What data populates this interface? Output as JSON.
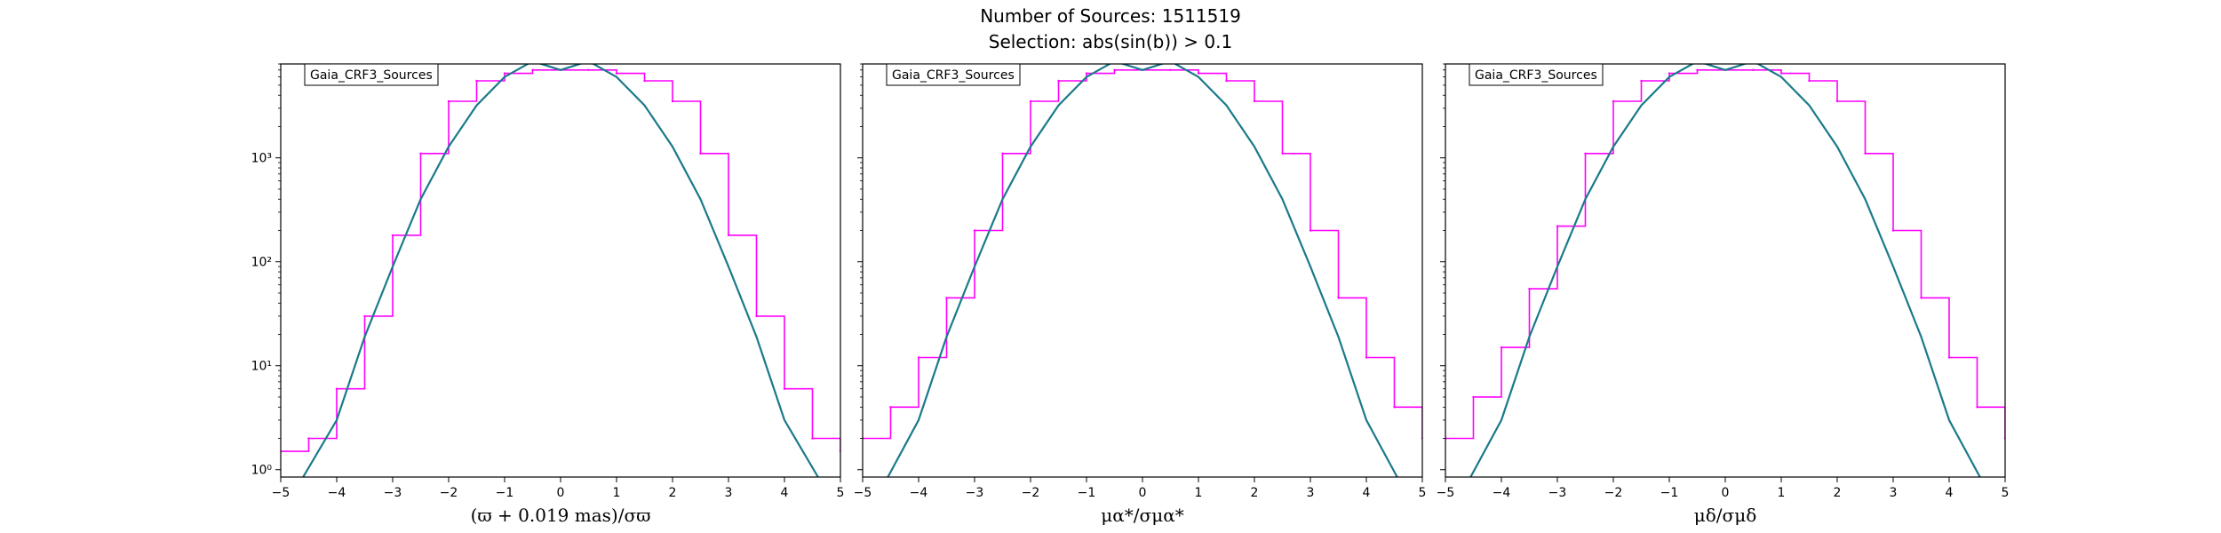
{
  "figure": {
    "title_line1": "Number of Sources: 1511519",
    "title_line2": "Selection: abs(sin(b)) > 0.1",
    "colors": {
      "histogram": "#ff00ff",
      "model_curve": "#1a7a8a",
      "axes": "#000000"
    }
  },
  "chart_data": [
    {
      "type": "line",
      "legend_label": "Gaia_CRF3_Sources",
      "legend_position": "top-left",
      "xlabel": "(ϖ + 0.019 mas)/σϖ",
      "xlim": [
        -5,
        5
      ],
      "ylim": [
        0.85,
        8000
      ],
      "yscale": "log",
      "xticks": [
        "−5",
        "−4",
        "−3",
        "−2",
        "−1",
        "0",
        "1",
        "2",
        "3",
        "4",
        "5"
      ],
      "yticks": [
        {
          "v": 1,
          "label": "10⁰"
        },
        {
          "v": 10,
          "label": "10¹"
        },
        {
          "v": 100,
          "label": "10²"
        },
        {
          "v": 1000,
          "label": "10³"
        }
      ],
      "series": [
        {
          "kind": "histogram",
          "color": "#ff00ff",
          "x": [
            -5.0,
            -4.5,
            -4.0,
            -3.5,
            -3.0,
            -2.5,
            -2.0,
            -1.5,
            -1.0,
            -0.5,
            0.0,
            0.5,
            1.0,
            1.5,
            2.0,
            2.5,
            3.0,
            3.5,
            4.0,
            4.5,
            5.0
          ],
          "y": [
            1.5,
            2,
            6,
            30,
            180,
            1100,
            3500,
            5500,
            6500,
            7000,
            7000,
            7000,
            6500,
            5500,
            3500,
            1100,
            180,
            30,
            6,
            2,
            1.5
          ]
        },
        {
          "kind": "model",
          "color": "#1a7a8a",
          "x": [
            -4.6,
            -4.0,
            -3.5,
            -3.0,
            -2.5,
            -2.0,
            -1.5,
            -1.0,
            -0.5,
            0.0,
            0.5,
            1.0,
            1.5,
            2.0,
            2.5,
            3.0,
            3.5,
            4.0,
            4.6
          ],
          "y": [
            0.85,
            3,
            19,
            90,
            400,
            1280,
            3200,
            6000,
            8500,
            7000,
            8500,
            6000,
            3200,
            1280,
            400,
            90,
            19,
            3,
            0.85
          ]
        }
      ]
    },
    {
      "type": "line",
      "legend_label": "Gaia_CRF3_Sources",
      "legend_position": "top-left",
      "xlabel": "μα*/σμα*",
      "xlim": [
        -5,
        5
      ],
      "ylim": [
        0.85,
        8000
      ],
      "yscale": "log",
      "xticks": [
        "−5",
        "−4",
        "−3",
        "−2",
        "−1",
        "0",
        "1",
        "2",
        "3",
        "4",
        "5"
      ],
      "yticks": [
        {
          "v": 1,
          "label": ""
        },
        {
          "v": 10,
          "label": ""
        },
        {
          "v": 100,
          "label": ""
        },
        {
          "v": 1000,
          "label": ""
        }
      ],
      "series": [
        {
          "kind": "histogram",
          "color": "#ff00ff",
          "x": [
            -5.0,
            -4.5,
            -4.0,
            -3.5,
            -3.0,
            -2.5,
            -2.0,
            -1.5,
            -1.0,
            -0.5,
            0.0,
            0.5,
            1.0,
            1.5,
            2.0,
            2.5,
            3.0,
            3.5,
            4.0,
            4.5,
            5.0
          ],
          "y": [
            2,
            4,
            12,
            45,
            200,
            1100,
            3500,
            5500,
            6500,
            7000,
            7000,
            7000,
            6500,
            5500,
            3500,
            1100,
            200,
            45,
            12,
            4,
            2
          ]
        },
        {
          "kind": "model",
          "color": "#1a7a8a",
          "x": [
            -4.55,
            -4.0,
            -3.5,
            -3.0,
            -2.5,
            -2.0,
            -1.5,
            -1.0,
            -0.5,
            0.0,
            0.5,
            1.0,
            1.5,
            2.0,
            2.5,
            3.0,
            3.5,
            4.0,
            4.55
          ],
          "y": [
            0.85,
            3,
            19,
            90,
            400,
            1280,
            3200,
            6000,
            8500,
            7000,
            8500,
            6000,
            3200,
            1280,
            400,
            90,
            19,
            3,
            0.85
          ]
        }
      ]
    },
    {
      "type": "line",
      "legend_label": "Gaia_CRF3_Sources",
      "legend_position": "top-left",
      "xlabel": "μδ/σμδ",
      "xlim": [
        -5,
        5
      ],
      "ylim": [
        0.85,
        8000
      ],
      "yscale": "log",
      "xticks": [
        "−5",
        "−4",
        "−3",
        "−2",
        "−1",
        "0",
        "1",
        "2",
        "3",
        "4",
        "5"
      ],
      "yticks": [
        {
          "v": 1,
          "label": ""
        },
        {
          "v": 10,
          "label": ""
        },
        {
          "v": 100,
          "label": ""
        },
        {
          "v": 1000,
          "label": ""
        }
      ],
      "series": [
        {
          "kind": "histogram",
          "color": "#ff00ff",
          "x": [
            -5.0,
            -4.5,
            -4.0,
            -3.5,
            -3.0,
            -2.5,
            -2.0,
            -1.5,
            -1.0,
            -0.5,
            0.0,
            0.5,
            1.0,
            1.5,
            2.0,
            2.5,
            3.0,
            3.5,
            4.0,
            4.5,
            5.0
          ],
          "y": [
            2,
            5,
            15,
            55,
            220,
            1100,
            3500,
            5500,
            6500,
            7000,
            7000,
            7000,
            6500,
            5500,
            3500,
            1100,
            200,
            45,
            12,
            4,
            2
          ]
        },
        {
          "kind": "model",
          "color": "#1a7a8a",
          "x": [
            -4.55,
            -4.0,
            -3.5,
            -3.0,
            -2.5,
            -2.0,
            -1.5,
            -1.0,
            -0.5,
            0.0,
            0.5,
            1.0,
            1.5,
            2.0,
            2.5,
            3.0,
            3.5,
            4.0,
            4.55
          ],
          "y": [
            0.85,
            3,
            19,
            90,
            400,
            1280,
            3200,
            6000,
            8500,
            7000,
            8500,
            6000,
            3200,
            1280,
            400,
            90,
            19,
            3,
            0.85
          ]
        }
      ]
    }
  ]
}
